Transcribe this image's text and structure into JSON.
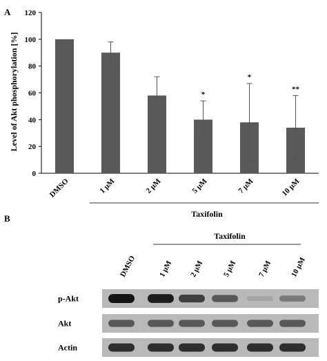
{
  "panel_a_label": "A",
  "panel_b_label": "B",
  "chart_data": {
    "type": "bar",
    "title": "",
    "ylabel": "Level of Akt phosphorylation [%]",
    "xlabel": "",
    "group_label": "Taxifolin",
    "categories": [
      "DMSO",
      "1 μM",
      "2 μM",
      "5 μM",
      "7 μM",
      "10 μM"
    ],
    "values": [
      100,
      90,
      58,
      40,
      38,
      34
    ],
    "errors": [
      0,
      8,
      14,
      14,
      29,
      24
    ],
    "significance": [
      "",
      "",
      "",
      "*",
      "*",
      "**"
    ],
    "ylim": [
      0,
      120
    ],
    "yticks": [
      0,
      20,
      40,
      60,
      80,
      100,
      120
    ],
    "grid": false,
    "bar_color": "#595959"
  },
  "blot": {
    "group_label": "Taxifolin",
    "lanes": [
      "DMSO",
      "1 μM",
      "2 μM",
      "5 μM",
      "7 μM",
      "10 μM"
    ],
    "rows": [
      {
        "label": "p-Akt",
        "intensity": [
          1.0,
          0.95,
          0.75,
          0.6,
          0.15,
          0.4
        ]
      },
      {
        "label": "Akt",
        "intensity": [
          0.6,
          0.6,
          0.6,
          0.6,
          0.6,
          0.6
        ]
      },
      {
        "label": "Actin",
        "intensity": [
          0.85,
          0.85,
          0.85,
          0.85,
          0.85,
          0.85
        ]
      }
    ]
  }
}
